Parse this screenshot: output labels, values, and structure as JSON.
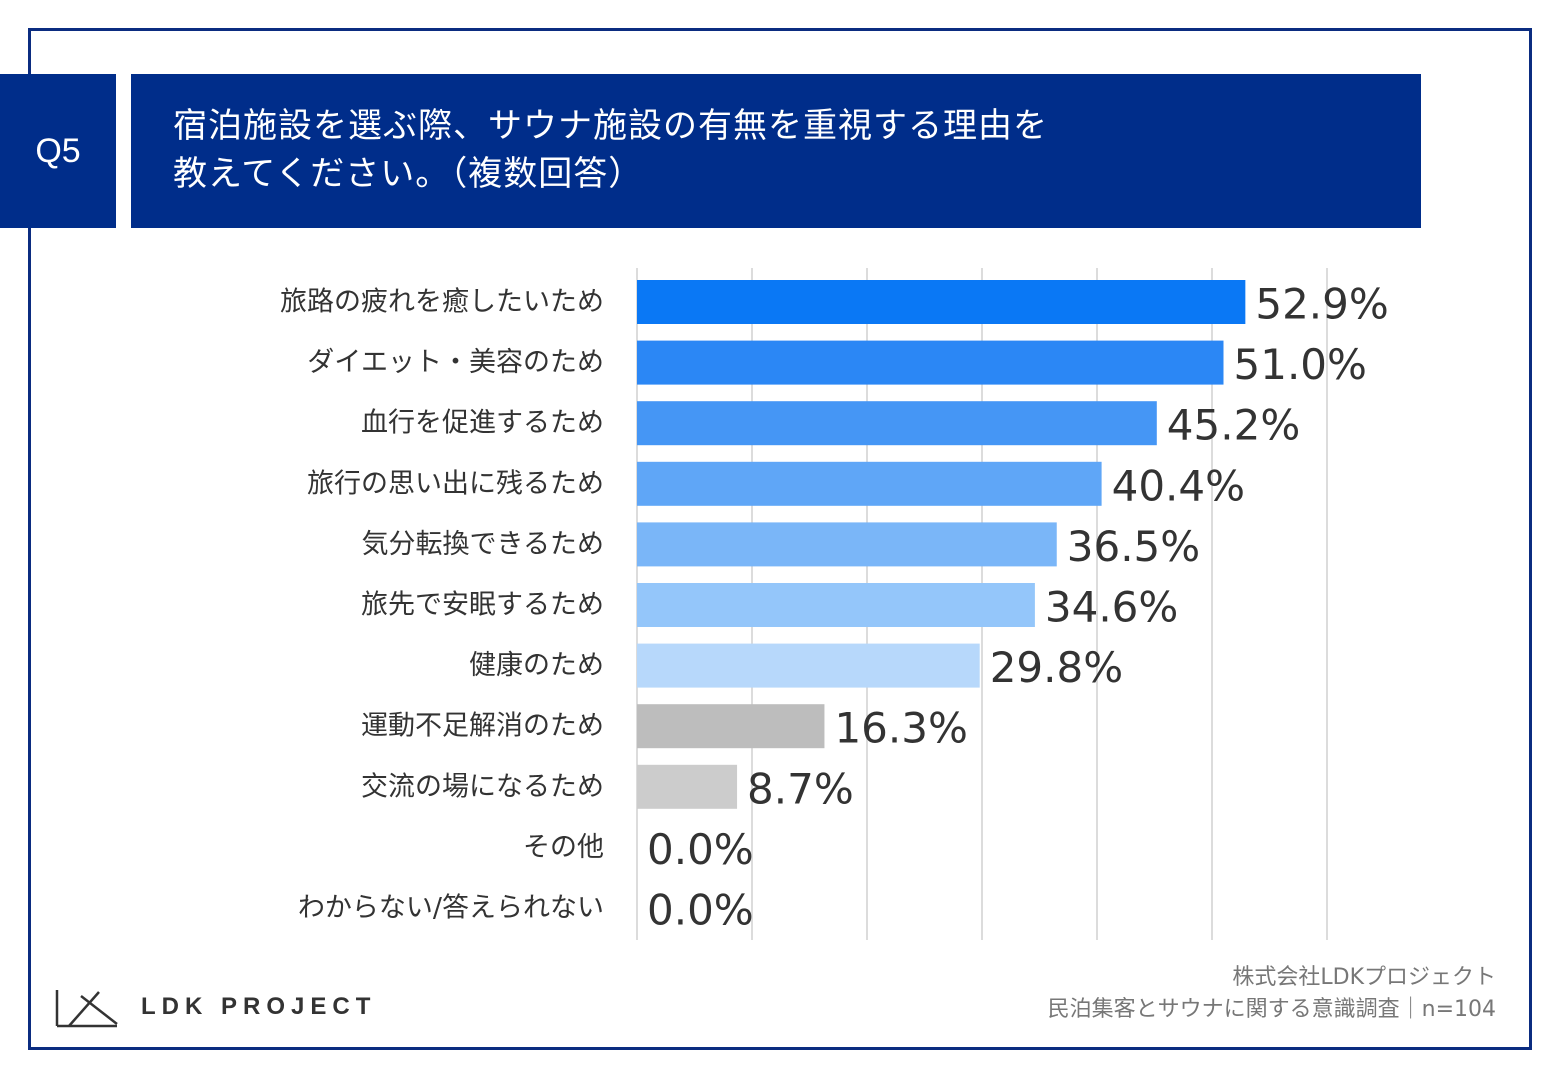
{
  "header": {
    "question_no": "Q5",
    "title_line1": "宿泊施設を選ぶ際、サウナ施設の有無を重視する理由を",
    "title_line2": "教えてください。（複数回答）"
  },
  "chart_data": {
    "type": "bar",
    "orientation": "horizontal",
    "unit": "%",
    "xlim": [
      0,
      60
    ],
    "gridlines_at": [
      0,
      10,
      20,
      30,
      40,
      50,
      60
    ],
    "categories": [
      "旅路の疲れを癒したいため",
      "ダイエット・美容のため",
      "血行を促進するため",
      "旅行の思い出に残るため",
      "気分転換できるため",
      "旅先で安眠するため",
      "健康のため",
      "運動不足解消のため",
      "交流の場になるため",
      "その他",
      "わからない/答えられない"
    ],
    "values": [
      52.9,
      51.0,
      45.2,
      40.4,
      36.5,
      34.6,
      29.8,
      16.3,
      8.7,
      0.0,
      0.0
    ],
    "value_labels": [
      "52.9%",
      "51.0%",
      "45.2%",
      "40.4%",
      "36.5%",
      "34.6%",
      "29.8%",
      "16.3%",
      "8.7%",
      "0.0%",
      "0.0%"
    ],
    "bar_colors": [
      "#0a78f5",
      "#2b87f5",
      "#4596f5",
      "#5fa6f7",
      "#7ab6f8",
      "#94c6fa",
      "#b7d8fb",
      "#bdbdbd",
      "#cccccc",
      "#cccccc",
      "#cccccc"
    ],
    "grid_color": "#d0d0d0"
  },
  "footer": {
    "company": "株式会社LDKプロジェクト",
    "survey": "民泊集客とサウナに関する意識調査｜n=104"
  },
  "logo": {
    "text": "LDK PROJECT",
    "icon": "ldk-logo-icon"
  },
  "colors": {
    "header_bg": "#002d8a",
    "frame_border": "#0b2c80"
  }
}
